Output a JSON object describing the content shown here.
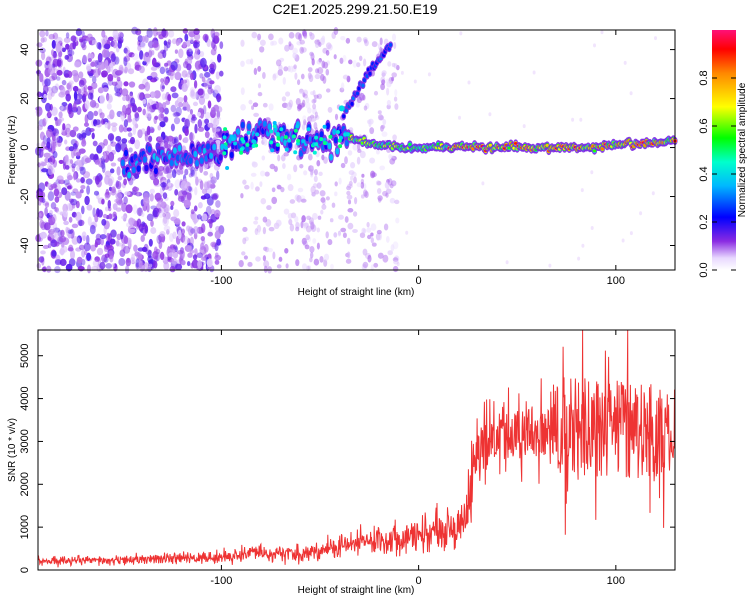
{
  "title": "C2E1.2025.299.21.50.E19",
  "chart_data": [
    {
      "type": "heatmap",
      "name": "spectrogram",
      "xlabel": "Height of straight line (km)",
      "ylabel": "Frequency (Hz)",
      "xlim": [
        -193,
        130
      ],
      "ylim": [
        -50,
        48
      ],
      "xticks": [
        -100,
        0,
        100
      ],
      "yticks": [
        -40,
        -20,
        0,
        20,
        40
      ],
      "colorbar": {
        "label": "Normalized spectral amplitude",
        "range": [
          0,
          1
        ],
        "ticks": [
          0.0,
          0.2,
          0.4,
          0.6,
          0.8
        ]
      },
      "ridge": {
        "description": "dominant frequency trace",
        "x": [
          -140,
          -120,
          -100,
          -80,
          -60,
          -40,
          -35,
          -20,
          0,
          20,
          40,
          60,
          80,
          100,
          120,
          130
        ],
        "y": [
          -5,
          -3,
          0,
          5,
          3,
          3,
          4,
          1,
          0,
          0,
          0,
          0,
          0,
          1,
          2,
          3
        ]
      },
      "branch": {
        "description": "rising frequency branch",
        "x": [
          -38,
          -32,
          -26,
          -20,
          -14
        ],
        "y": [
          14,
          22,
          30,
          36,
          42
        ]
      }
    },
    {
      "type": "line",
      "name": "snr",
      "xlabel": "Height of straight line (km)",
      "ylabel": "SNR (10 * v/v)",
      "xlim": [
        -193,
        130
      ],
      "ylim": [
        0,
        5600
      ],
      "xticks": [
        -100,
        0,
        100
      ],
      "yticks": [
        0,
        1000,
        2000,
        3000,
        4000,
        5000
      ],
      "color": "#ee3333",
      "series": [
        {
          "name": "SNR envelope",
          "x": [
            -193,
            -150,
            -100,
            -80,
            -60,
            -40,
            -20,
            0,
            20,
            25,
            30,
            40,
            60,
            80,
            100,
            130
          ],
          "y": [
            200,
            220,
            300,
            400,
            350,
            550,
            700,
            800,
            1000,
            1400,
            2800,
            3100,
            3200,
            3400,
            3300,
            3100
          ]
        }
      ]
    }
  ]
}
